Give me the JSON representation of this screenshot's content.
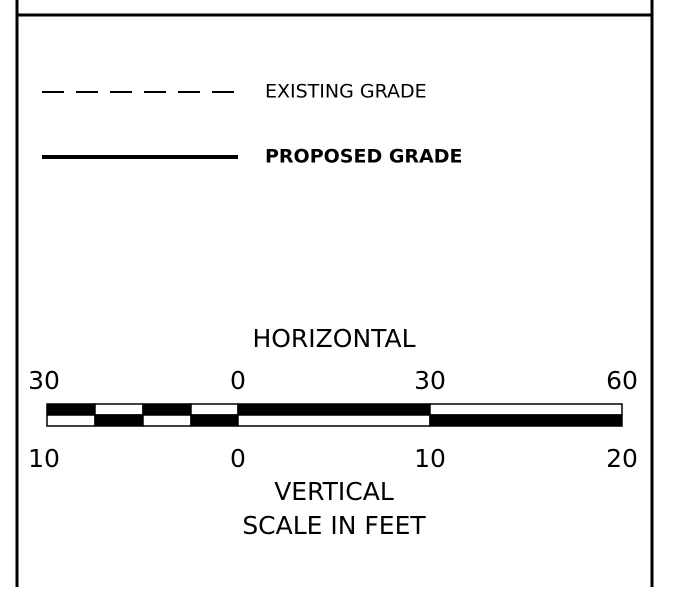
{
  "legend": {
    "items": [
      {
        "label": "EXISTING GRADE",
        "style": "dashed"
      },
      {
        "label": "PROPOSED GRADE",
        "style": "solid"
      }
    ]
  },
  "scale": {
    "horizontal_label": "HORIZONTAL",
    "horizontal_ticks": [
      "30",
      "0",
      "30",
      "60"
    ],
    "vertical_ticks": [
      "10",
      "0",
      "10",
      "20"
    ],
    "vertical_label": "VERTICAL",
    "caption": "SCALE IN FEET"
  }
}
